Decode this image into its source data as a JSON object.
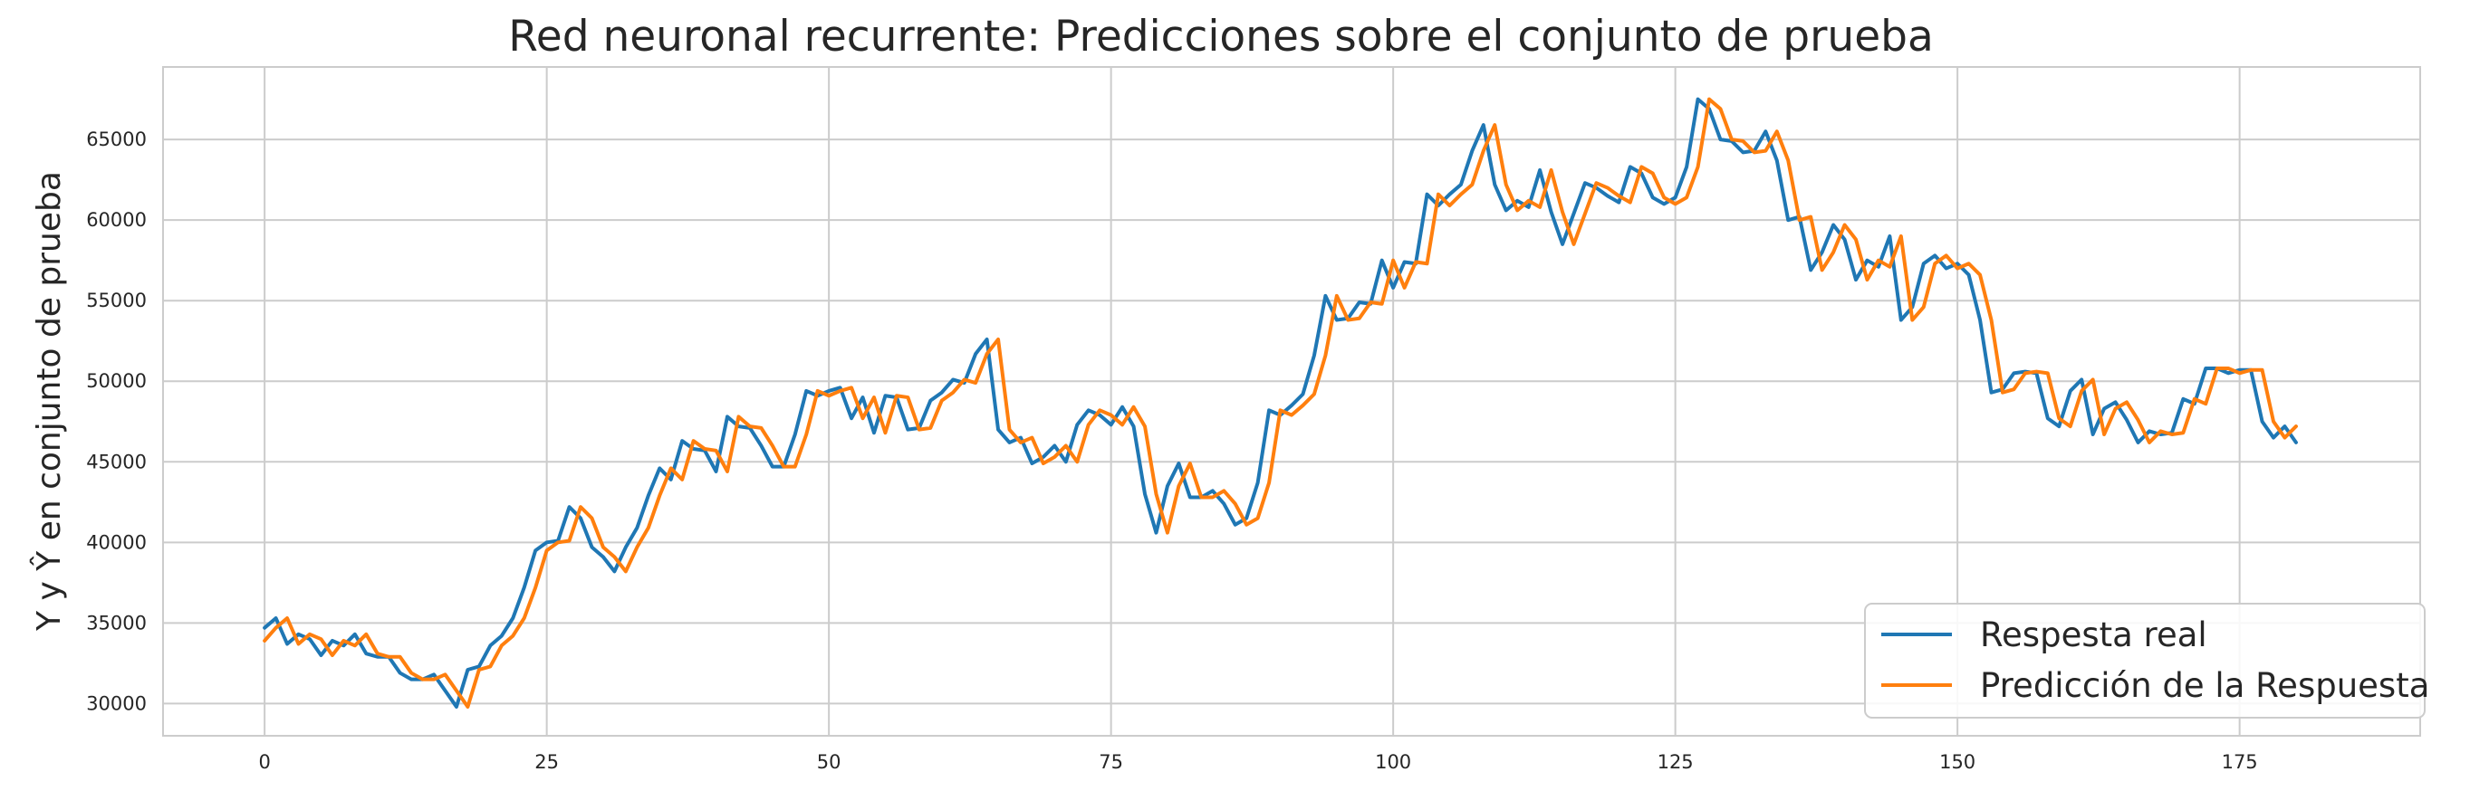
{
  "chart_data": {
    "type": "line",
    "title": "Red neuronal recurrente: Predicciones sobre el conjunto de prueba",
    "xlabel": "",
    "ylabel": "Y y Ŷ en conjunto de prueba",
    "xlim": [
      -9,
      191
    ],
    "ylim": [
      28000,
      69500
    ],
    "xticks": [
      0,
      25,
      50,
      75,
      100,
      125,
      150,
      175
    ],
    "yticks": [
      30000,
      35000,
      40000,
      45000,
      50000,
      55000,
      60000,
      65000
    ],
    "grid": true,
    "legend_position": "lower-right",
    "colors": {
      "series_0": "#1f77b4",
      "series_1": "#ff7f0e",
      "grid": "#cccccc"
    },
    "series": [
      {
        "name": "Respesta real",
        "values": [
          34700,
          35300,
          33700,
          34300,
          34000,
          33000,
          33900,
          33600,
          34300,
          33100,
          32900,
          32900,
          31900,
          31500,
          31500,
          31800,
          30800,
          29800,
          32100,
          32300,
          33600,
          34200,
          35300,
          37200,
          39500,
          40000,
          40100,
          42200,
          41500,
          39700,
          39100,
          38200,
          39700,
          40900,
          42900,
          44600,
          43900,
          46300,
          45800,
          45700,
          44400,
          47800,
          47200,
          47100,
          46000,
          44700,
          44700,
          46700,
          49400,
          49100,
          49400,
          49600,
          47700,
          49000,
          46800,
          49100,
          49000,
          47000,
          47100,
          48800,
          49300,
          50100,
          49900,
          51700,
          52600,
          47000,
          46200,
          46500,
          44900,
          45300,
          46000,
          45000,
          47300,
          48200,
          47900,
          47300,
          48400,
          47200,
          43000,
          40600,
          43500,
          44900,
          42800,
          42800,
          43200,
          42400,
          41100,
          41500,
          43700,
          48200,
          47900,
          48500,
          49200,
          51600,
          55300,
          53800,
          53900,
          54900,
          54800,
          57500,
          55800,
          57400,
          57300,
          61600,
          60900,
          61600,
          62200,
          64300,
          65900,
          62200,
          60600,
          61200,
          60800,
          63100,
          60500,
          58500,
          60400,
          62300,
          62000,
          61500,
          61100,
          63300,
          62900,
          61400,
          61000,
          61400,
          63300,
          67500,
          66900,
          65000,
          64900,
          64200,
          64300,
          65500,
          63700,
          60000,
          60200,
          56900,
          58000,
          59700,
          58800,
          56300,
          57500,
          57100,
          59000,
          53800,
          54600,
          57300,
          57800,
          57000,
          57300,
          56600,
          53800,
          49300,
          49500,
          50500,
          50600,
          50500,
          47700,
          47200,
          49400,
          50100,
          46700,
          48300,
          48700,
          47600,
          46200,
          46900,
          46700,
          46800,
          48900,
          48600,
          50800,
          50800,
          50500,
          50700,
          50700,
          47500,
          46500,
          47200,
          46200
        ]
      },
      {
        "name": "Predicción de la Respuesta",
        "values": [
          33900,
          34700,
          35300,
          33700,
          34300,
          34000,
          33000,
          33900,
          33600,
          34300,
          33100,
          32900,
          32900,
          31900,
          31500,
          31500,
          31800,
          30800,
          29800,
          32100,
          32300,
          33600,
          34200,
          35300,
          37200,
          39500,
          40000,
          40100,
          42200,
          41500,
          39700,
          39100,
          38200,
          39700,
          40900,
          42900,
          44600,
          43900,
          46300,
          45800,
          45700,
          44400,
          47800,
          47200,
          47100,
          46000,
          44700,
          44700,
          46700,
          49400,
          49100,
          49400,
          49600,
          47700,
          49000,
          46800,
          49100,
          49000,
          47000,
          47100,
          48800,
          49300,
          50100,
          49900,
          51700,
          52600,
          47000,
          46200,
          46500,
          44900,
          45300,
          46000,
          45000,
          47300,
          48200,
          47900,
          47300,
          48400,
          47200,
          43000,
          40600,
          43500,
          44900,
          42800,
          42800,
          43200,
          42400,
          41100,
          41500,
          43700,
          48200,
          47900,
          48500,
          49200,
          51600,
          55300,
          53800,
          53900,
          54900,
          54800,
          57500,
          55800,
          57400,
          57300,
          61600,
          60900,
          61600,
          62200,
          64300,
          65900,
          62200,
          60600,
          61200,
          60800,
          63100,
          60500,
          58500,
          60400,
          62300,
          62000,
          61500,
          61100,
          63300,
          62900,
          61400,
          61000,
          61400,
          63300,
          67500,
          66900,
          65000,
          64900,
          64200,
          64300,
          65500,
          63700,
          60000,
          60200,
          56900,
          58000,
          59700,
          58800,
          56300,
          57500,
          57100,
          59000,
          53800,
          54600,
          57300,
          57800,
          57000,
          57300,
          56600,
          53800,
          49300,
          49500,
          50500,
          50600,
          50500,
          47700,
          47200,
          49400,
          50100,
          46700,
          48300,
          48700,
          47600,
          46200,
          46900,
          46700,
          46800,
          48900,
          48600,
          50800,
          50800,
          50500,
          50700,
          50700,
          47500,
          46500,
          47200
        ]
      }
    ]
  }
}
